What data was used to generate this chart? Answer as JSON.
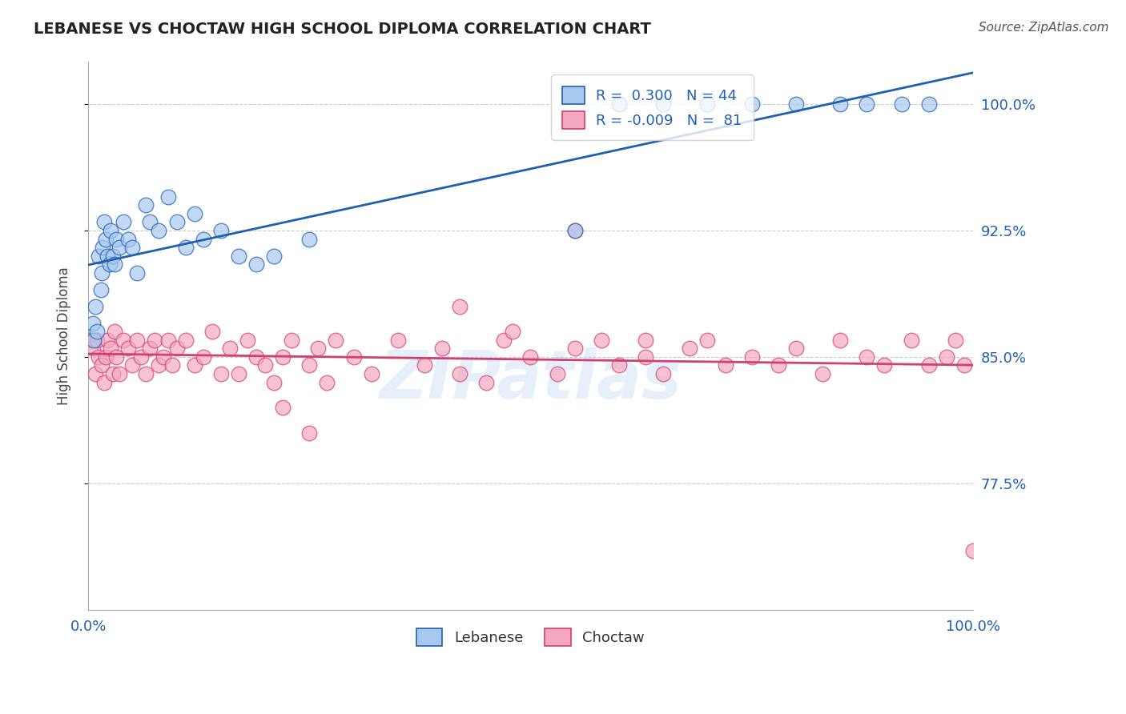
{
  "title": "LEBANESE VS CHOCTAW HIGH SCHOOL DIPLOMA CORRELATION CHART",
  "source": "Source: ZipAtlas.com",
  "ylabel": "High School Diploma",
  "xlim": [
    0.0,
    100.0
  ],
  "ylim": [
    70.0,
    102.5
  ],
  "yticks": [
    77.5,
    85.0,
    92.5,
    100.0
  ],
  "ytick_labels": [
    "77.5%",
    "85.0%",
    "92.5%",
    "100.0%"
  ],
  "xtick_labels": [
    "0.0%",
    "100.0%"
  ],
  "legend_R_lebanese": "0.300",
  "legend_N_lebanese": "44",
  "legend_R_choctaw": "-0.009",
  "legend_N_choctaw": "81",
  "lebanese_color": "#a8c8f0",
  "choctaw_color": "#f4a8c0",
  "lebanese_line_color": "#2060b0",
  "choctaw_line_color": "#d04070",
  "background_color": "#ffffff",
  "lebanese_x": [
    0.5,
    0.6,
    0.8,
    1.0,
    1.2,
    1.4,
    1.5,
    1.6,
    1.8,
    2.0,
    2.2,
    2.4,
    2.5,
    2.8,
    3.0,
    3.2,
    3.5,
    4.0,
    4.5,
    5.0,
    5.5,
    6.5,
    7.0,
    8.0,
    9.0,
    10.0,
    11.0,
    12.0,
    13.0,
    15.0,
    17.0,
    19.0,
    21.0,
    25.0,
    55.0,
    60.0,
    65.0,
    70.0,
    75.0,
    80.0,
    85.0,
    88.0,
    92.0,
    95.0
  ],
  "lebanese_y": [
    87.0,
    86.0,
    88.0,
    86.5,
    91.0,
    89.0,
    90.0,
    91.5,
    93.0,
    92.0,
    91.0,
    90.5,
    92.5,
    91.0,
    90.5,
    92.0,
    91.5,
    93.0,
    92.0,
    91.5,
    90.0,
    94.0,
    93.0,
    92.5,
    94.5,
    93.0,
    91.5,
    93.5,
    92.0,
    92.5,
    91.0,
    90.5,
    91.0,
    92.0,
    92.5,
    100.0,
    100.0,
    100.0,
    100.0,
    100.0,
    100.0,
    100.0,
    100.0,
    100.0
  ],
  "choctaw_x": [
    0.3,
    0.5,
    0.8,
    1.0,
    1.2,
    1.5,
    1.8,
    2.0,
    2.2,
    2.5,
    2.8,
    3.0,
    3.2,
    3.5,
    4.0,
    4.5,
    5.0,
    5.5,
    6.0,
    6.5,
    7.0,
    7.5,
    8.0,
    8.5,
    9.0,
    9.5,
    10.0,
    11.0,
    12.0,
    13.0,
    14.0,
    15.0,
    16.0,
    17.0,
    18.0,
    19.0,
    20.0,
    21.0,
    22.0,
    23.0,
    25.0,
    26.0,
    27.0,
    28.0,
    30.0,
    32.0,
    35.0,
    38.0,
    40.0,
    42.0,
    45.0,
    47.0,
    50.0,
    53.0,
    55.0,
    58.0,
    60.0,
    63.0,
    65.0,
    68.0,
    70.0,
    72.0,
    75.0,
    78.0,
    80.0,
    83.0,
    85.0,
    88.0,
    90.0,
    93.0,
    95.0,
    97.0,
    98.0,
    99.0,
    100.0,
    55.0,
    42.0,
    48.0,
    22.0,
    25.0,
    63.0
  ],
  "choctaw_y": [
    86.0,
    85.5,
    84.0,
    86.0,
    85.0,
    84.5,
    83.5,
    85.0,
    86.0,
    85.5,
    84.0,
    86.5,
    85.0,
    84.0,
    86.0,
    85.5,
    84.5,
    86.0,
    85.0,
    84.0,
    85.5,
    86.0,
    84.5,
    85.0,
    86.0,
    84.5,
    85.5,
    86.0,
    84.5,
    85.0,
    86.5,
    84.0,
    85.5,
    84.0,
    86.0,
    85.0,
    84.5,
    83.5,
    85.0,
    86.0,
    84.5,
    85.5,
    83.5,
    86.0,
    85.0,
    84.0,
    86.0,
    84.5,
    85.5,
    84.0,
    83.5,
    86.0,
    85.0,
    84.0,
    85.5,
    86.0,
    84.5,
    85.0,
    84.0,
    85.5,
    86.0,
    84.5,
    85.0,
    84.5,
    85.5,
    84.0,
    86.0,
    85.0,
    84.5,
    86.0,
    84.5,
    85.0,
    86.0,
    84.5,
    73.5,
    92.5,
    88.0,
    86.5,
    82.0,
    80.5,
    86.0
  ]
}
